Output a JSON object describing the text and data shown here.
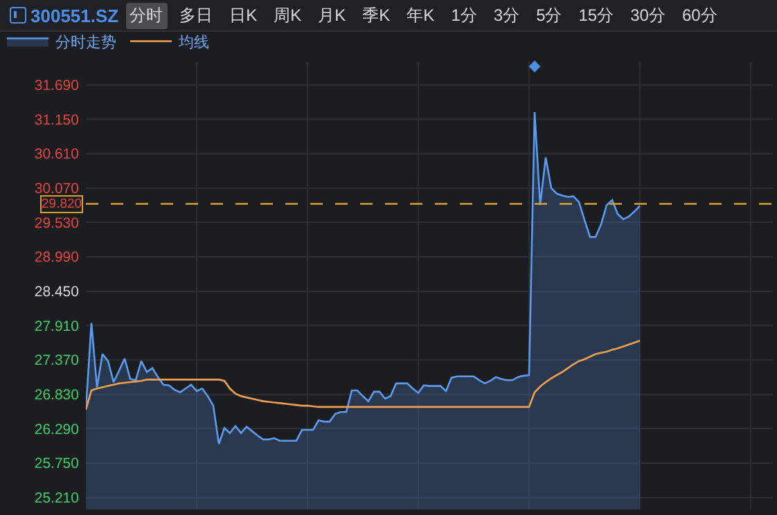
{
  "chart_data": {
    "type": "area",
    "title": "300551.SZ",
    "annotations": [
      "分时",
      "多日",
      "日K",
      "周K",
      "月K",
      "季K",
      "年K",
      "1分",
      "3分",
      "5分",
      "15分",
      "30分",
      "60分"
    ],
    "categories": [
      null,
      null,
      null,
      null,
      null,
      null,
      null,
      null,
      null,
      null,
      null,
      null,
      null,
      null,
      null,
      null,
      null,
      null,
      null,
      null,
      null,
      null,
      null,
      null,
      null,
      null,
      null,
      null,
      null,
      null,
      null,
      null,
      null,
      null,
      null,
      null,
      null,
      null,
      null,
      null,
      null,
      null,
      null,
      null,
      null,
      null,
      null,
      null,
      null,
      null,
      null,
      null,
      null,
      null,
      null,
      null,
      null,
      null,
      null,
      null,
      null,
      null,
      null,
      null,
      null,
      null,
      null,
      null,
      null,
      null,
      null,
      null,
      null,
      null,
      null,
      null,
      null,
      null,
      null,
      null,
      null,
      null,
      null,
      null,
      null,
      null,
      null,
      null,
      null,
      null,
      null,
      null,
      null,
      null,
      null,
      null,
      null,
      null,
      null,
      null,
      null,
      null,
      null,
      null,
      null,
      null,
      null,
      null,
      null,
      null,
      null,
      null,
      null,
      null,
      null,
      null,
      null,
      null,
      null,
      null,
      null,
      null,
      null,
      null,
      null
    ],
    "series": [
      {
        "name": "分时走势",
        "color": "#5b9bf0",
        "values": [
          26.59,
          27.95,
          26.94,
          27.46,
          27.35,
          27.02,
          27.2,
          27.39,
          27.07,
          27.05,
          27.35,
          27.18,
          27.24,
          27.1,
          26.98,
          26.97,
          26.9,
          26.86,
          26.92,
          26.98,
          26.88,
          26.92,
          26.8,
          26.65,
          26.05,
          26.3,
          26.22,
          26.33,
          26.22,
          26.32,
          26.25,
          26.18,
          26.12,
          26.12,
          26.14,
          26.1,
          26.1,
          26.1,
          26.1,
          26.27,
          26.27,
          26.27,
          26.42,
          26.4,
          26.4,
          26.52,
          26.55,
          26.55,
          26.89,
          26.89,
          26.8,
          26.72,
          26.87,
          26.87,
          26.76,
          26.8,
          27.0,
          27.0,
          27.0,
          26.92,
          26.85,
          26.97,
          26.96,
          26.96,
          26.96,
          26.88,
          27.09,
          27.11,
          27.11,
          27.11,
          27.11,
          27.05,
          27.0,
          27.04,
          27.1,
          27.07,
          27.05,
          27.05,
          27.1,
          27.12,
          27.13,
          31.26,
          29.8,
          30.55,
          30.07,
          29.98,
          29.95,
          29.93,
          29.94,
          29.85,
          29.57,
          29.3,
          29.3,
          29.5,
          29.8,
          29.88,
          29.66,
          29.58,
          29.62,
          29.7,
          29.79,
          null,
          null,
          null,
          null,
          null,
          null,
          null,
          null,
          null,
          null,
          null,
          null,
          null,
          null,
          null,
          null,
          null,
          null,
          null,
          null,
          null,
          null,
          null,
          null
        ]
      },
      {
        "name": "均线",
        "type": "line",
        "color": "#f0a050",
        "values": [
          26.59,
          26.89,
          26.92,
          26.94,
          26.96,
          26.98,
          27.0,
          27.01,
          27.02,
          27.03,
          27.04,
          27.06,
          27.06,
          27.06,
          27.06,
          27.06,
          27.06,
          27.06,
          27.06,
          27.06,
          27.06,
          27.06,
          27.06,
          27.06,
          27.06,
          27.04,
          26.92,
          26.84,
          26.8,
          26.78,
          26.76,
          26.74,
          26.72,
          26.71,
          26.7,
          26.69,
          26.68,
          26.67,
          26.66,
          26.65,
          26.65,
          26.64,
          26.63,
          26.63,
          26.63,
          26.63,
          26.63,
          26.63,
          26.63,
          26.63,
          26.63,
          26.63,
          26.63,
          26.63,
          26.63,
          26.63,
          26.63,
          26.63,
          26.63,
          26.63,
          26.63,
          26.63,
          26.63,
          26.63,
          26.63,
          26.63,
          26.63,
          26.63,
          26.63,
          26.63,
          26.63,
          26.63,
          26.63,
          26.63,
          26.63,
          26.63,
          26.63,
          26.63,
          26.63,
          26.63,
          26.63,
          26.86,
          26.95,
          27.02,
          27.08,
          27.13,
          27.18,
          27.24,
          27.3,
          27.35,
          27.38,
          27.42,
          27.46,
          27.48,
          27.5,
          27.53,
          27.55,
          27.58,
          27.61,
          27.64,
          27.67,
          null,
          null,
          null,
          null,
          null,
          null,
          null,
          null,
          null,
          null,
          null,
          null,
          null,
          null,
          null,
          null,
          null,
          null,
          null,
          null,
          null,
          null,
          null,
          null
        ]
      }
    ],
    "ylim": [
      25.02,
      32.06
    ],
    "yticks": [
      {
        "value": 31.69,
        "label": "31.690"
      },
      {
        "value": 31.15,
        "label": "31.150"
      },
      {
        "value": 30.61,
        "label": "30.610"
      },
      {
        "value": 30.07,
        "label": "30.070"
      },
      {
        "value": 29.53,
        "label": "29.530"
      },
      {
        "value": 28.99,
        "label": "28.990"
      },
      {
        "value": 28.45,
        "label": "28.450"
      },
      {
        "value": 27.91,
        "label": "27.910"
      },
      {
        "value": 27.37,
        "label": "27.370"
      },
      {
        "value": 26.83,
        "label": "26.830"
      },
      {
        "value": 26.29,
        "label": "26.290"
      },
      {
        "value": 25.75,
        "label": "25.750"
      },
      {
        "value": 25.21,
        "label": "25.210"
      }
    ],
    "ref_lines": [
      {
        "axis": "y",
        "value": 29.82,
        "label": "29.820",
        "color": "#d9a030",
        "line_style": "dashed"
      }
    ],
    "grid": true,
    "legend": "top left",
    "tick_labels": "y",
    "marker": "none",
    "line_style": "solid"
  }
}
